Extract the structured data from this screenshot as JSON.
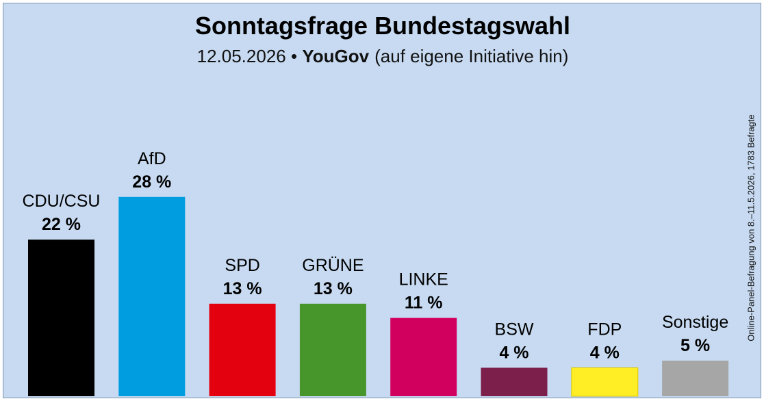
{
  "header": {
    "title": "Sonntagsfrage Bundestagswahl",
    "date": "12.05.2026",
    "bullet": "•",
    "institute": "YouGov",
    "note": "(auf eigene Initiative hin)"
  },
  "side_note": "Online-Panel-Befragung von 8.–11.5.2026, 1783 Befragte",
  "chart_data": {
    "type": "bar",
    "title": "Sonntagsfrage Bundestagswahl",
    "categories": [
      "CDU/CSU",
      "AfD",
      "SPD",
      "GRÜNE",
      "LINKE",
      "BSW",
      "FDP",
      "Sonstige"
    ],
    "values": [
      22,
      28,
      13,
      13,
      11,
      4,
      4,
      5
    ],
    "value_labels": [
      "22 %",
      "28 %",
      "13 %",
      "13 %",
      "11 %",
      "4 %",
      "4 %",
      "5 %"
    ],
    "colors": [
      "#000000",
      "#009ee0",
      "#e3000f",
      "#46962b",
      "#d1005e",
      "#7c1f4b",
      "#ffed26",
      "#a6a6a6"
    ],
    "unit": "%",
    "ylim": [
      0,
      30
    ],
    "grid": false,
    "legend": "none"
  }
}
